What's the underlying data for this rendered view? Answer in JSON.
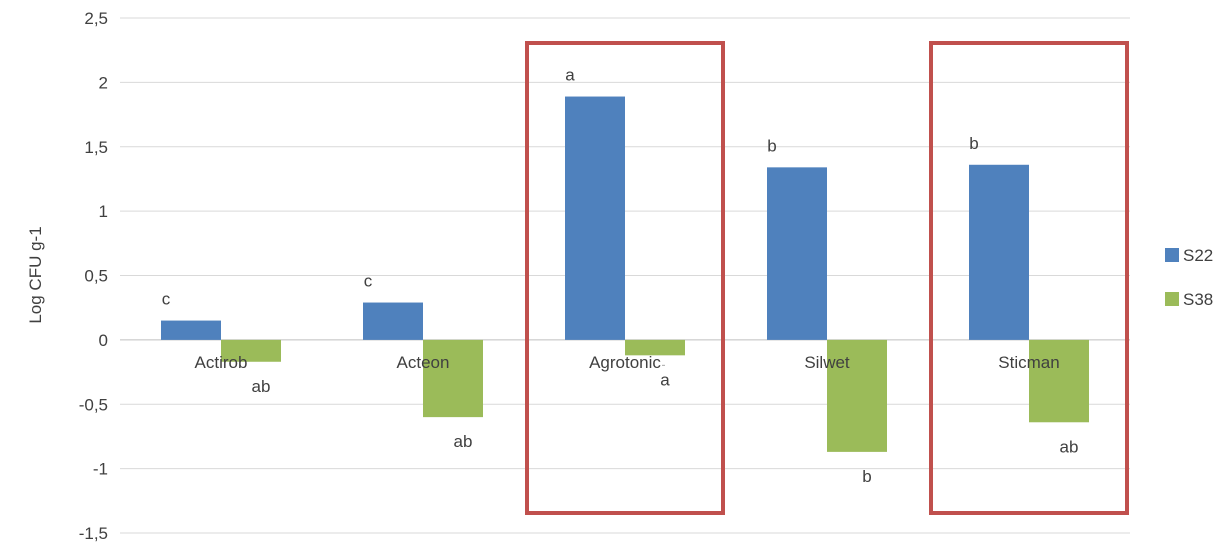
{
  "chart_data": {
    "type": "bar",
    "ylabel": "Log CFU g-1",
    "ylim": [
      -1.5,
      2.5
    ],
    "yticks": [
      "-1,5",
      "-1",
      "-0,5",
      "0",
      "0,5",
      "1",
      "1,5",
      "2",
      "2,5"
    ],
    "categories": [
      "Actirob",
      "Acteon",
      "Agrotonic",
      "Silwet",
      "Sticman"
    ],
    "series": [
      {
        "name": "S22",
        "color": "#4F81BD",
        "values": [
          0.15,
          0.29,
          1.89,
          1.34,
          1.36
        ],
        "labels": [
          "c",
          "c",
          "a",
          "b",
          "b"
        ]
      },
      {
        "name": "S38",
        "color": "#9BBB59",
        "values": [
          -0.17,
          -0.6,
          -0.12,
          -0.87,
          -0.64
        ],
        "labels": [
          "ab",
          "ab",
          "a",
          "b",
          "ab"
        ]
      }
    ],
    "grid": true,
    "legend": "right",
    "highlighted_categories": [
      "Agrotonic",
      "Sticman"
    ],
    "highlight_color": "#C0504D"
  }
}
